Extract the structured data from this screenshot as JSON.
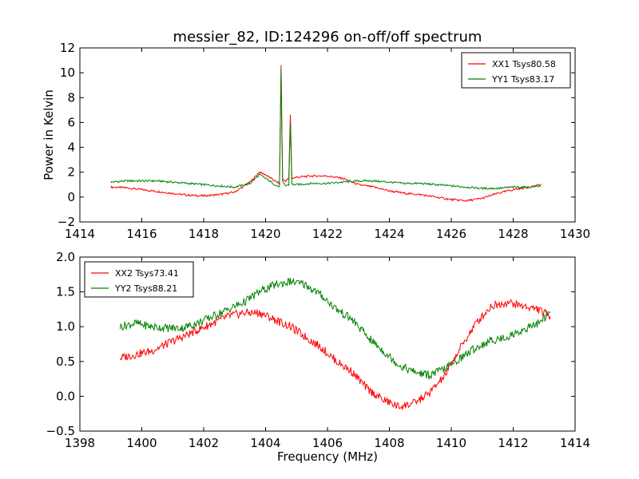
{
  "figure": {
    "title": "messier_82, ID:124296 on-off/off spectrum",
    "xlabel": "Frequency (MHz)"
  },
  "chart_data": [
    {
      "type": "line",
      "title": "messier_82, ID:124296 on-off/off spectrum",
      "xlabel": "",
      "ylabel": "Power in Kelvin",
      "xlim": [
        1414,
        1430
      ],
      "ylim": [
        -2,
        12
      ],
      "xticks": [
        "1414",
        "1416",
        "1418",
        "1420",
        "1422",
        "1424",
        "1426",
        "1428",
        "1430"
      ],
      "yticks": [
        "−2",
        "0",
        "2",
        "4",
        "6",
        "8",
        "10",
        "12"
      ],
      "grid": false,
      "legend": "top-right",
      "x": [
        1415.0,
        1415.5,
        1416.0,
        1416.5,
        1417.0,
        1417.5,
        1418.0,
        1418.5,
        1419.0,
        1419.5,
        1419.8,
        1420.0,
        1420.3,
        1420.45,
        1420.5,
        1420.55,
        1420.65,
        1420.75,
        1420.8,
        1420.85,
        1421.0,
        1421.5,
        1422.0,
        1422.5,
        1423.0,
        1423.5,
        1424.0,
        1424.5,
        1425.0,
        1425.5,
        1426.0,
        1426.5,
        1427.0,
        1427.5,
        1428.0,
        1428.5,
        1428.9
      ],
      "series": [
        {
          "name": "XX1 Tsys80.58",
          "color": "#ff0000",
          "values": [
            0.8,
            0.75,
            0.6,
            0.45,
            0.3,
            0.15,
            0.1,
            0.2,
            0.4,
            1.2,
            2.0,
            1.8,
            1.3,
            1.1,
            10.6,
            1.4,
            1.3,
            1.5,
            6.6,
            1.5,
            1.6,
            1.7,
            1.7,
            1.5,
            1.0,
            0.8,
            0.5,
            0.3,
            0.2,
            0.0,
            -0.2,
            -0.3,
            -0.1,
            0.3,
            0.6,
            0.8,
            1.0
          ]
        },
        {
          "name": "YY1 Tsys83.17",
          "color": "#008000",
          "values": [
            1.2,
            1.3,
            1.3,
            1.3,
            1.2,
            1.1,
            1.0,
            0.9,
            0.8,
            1.1,
            1.8,
            1.5,
            1.0,
            0.8,
            10.2,
            1.2,
            0.9,
            1.0,
            6.0,
            1.0,
            1.0,
            1.1,
            1.1,
            1.2,
            1.3,
            1.3,
            1.2,
            1.1,
            1.1,
            1.0,
            0.9,
            0.8,
            0.7,
            0.7,
            0.8,
            0.8,
            0.9
          ]
        }
      ]
    },
    {
      "type": "line",
      "title": "",
      "xlabel": "Frequency (MHz)",
      "ylabel": "",
      "xlim": [
        1398,
        1414
      ],
      "ylim": [
        -0.5,
        2.0
      ],
      "xticks": [
        "1398",
        "1400",
        "1402",
        "1404",
        "1406",
        "1408",
        "1410",
        "1412",
        "1414"
      ],
      "yticks": [
        "−0.5",
        "0.0",
        "0.5",
        "1.0",
        "1.5",
        "2.0"
      ],
      "grid": false,
      "legend": "top-left",
      "x": [
        1399.3,
        1399.8,
        1400.3,
        1400.8,
        1401.3,
        1401.8,
        1402.3,
        1402.8,
        1403.3,
        1403.8,
        1404.3,
        1404.8,
        1405.3,
        1405.8,
        1406.3,
        1406.8,
        1407.3,
        1407.8,
        1408.3,
        1408.8,
        1409.3,
        1409.8,
        1410.3,
        1410.8,
        1411.3,
        1411.8,
        1412.3,
        1412.8,
        1413.2
      ],
      "series": [
        {
          "name": "XX2 Tsys73.41",
          "color": "#ff0000",
          "values": [
            0.55,
            0.6,
            0.65,
            0.75,
            0.85,
            0.95,
            1.05,
            1.15,
            1.2,
            1.2,
            1.1,
            1.0,
            0.85,
            0.7,
            0.5,
            0.35,
            0.1,
            -0.05,
            -0.15,
            -0.1,
            0.05,
            0.3,
            0.7,
            1.05,
            1.3,
            1.35,
            1.3,
            1.25,
            1.15
          ]
        },
        {
          "name": "YY2 Tsys88.21",
          "color": "#008000",
          "values": [
            1.0,
            1.05,
            1.0,
            0.98,
            0.98,
            1.05,
            1.15,
            1.25,
            1.35,
            1.5,
            1.6,
            1.65,
            1.6,
            1.45,
            1.25,
            1.1,
            0.85,
            0.65,
            0.45,
            0.35,
            0.3,
            0.4,
            0.55,
            0.7,
            0.8,
            0.85,
            0.95,
            1.05,
            1.2
          ]
        }
      ]
    }
  ]
}
